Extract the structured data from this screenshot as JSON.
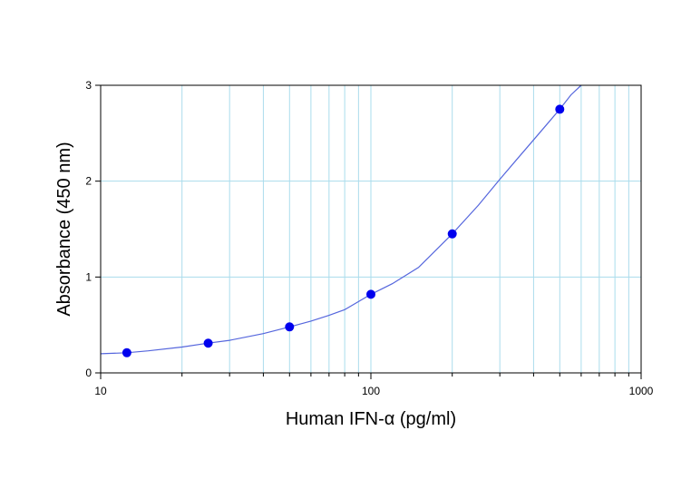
{
  "chart_data": {
    "type": "scatter",
    "title": "",
    "xlabel": "Human IFN-α (pg/ml)",
    "ylabel": "Absorbance (450 nm)",
    "xscale": "log",
    "xlim": [
      10,
      1000
    ],
    "ylim": [
      0,
      3
    ],
    "x_ticks": [
      {
        "value": 10,
        "label": "10"
      },
      {
        "value": 100,
        "label": "100"
      },
      {
        "value": 1000,
        "label": "1000"
      }
    ],
    "y_ticks": [
      {
        "value": 0,
        "label": "0"
      },
      {
        "value": 1,
        "label": "1"
      },
      {
        "value": 2,
        "label": "2"
      },
      {
        "value": 3,
        "label": "3"
      }
    ],
    "grid": true,
    "series": [
      {
        "x": [
          12.5,
          25,
          50,
          100,
          200,
          500
        ],
        "y": [
          0.21,
          0.31,
          0.48,
          0.82,
          1.45,
          2.75
        ],
        "color": "#0000ee",
        "marker": "circle"
      }
    ],
    "fit_curve": {
      "x": [
        10,
        12.5,
        15,
        20,
        25,
        30,
        40,
        50,
        60,
        70,
        80,
        100,
        120,
        150,
        200,
        250,
        300,
        350,
        400,
        450,
        500,
        550,
        600
      ],
      "y": [
        0.2,
        0.21,
        0.23,
        0.27,
        0.31,
        0.34,
        0.41,
        0.48,
        0.54,
        0.6,
        0.66,
        0.82,
        0.93,
        1.1,
        1.45,
        1.75,
        2.02,
        2.24,
        2.43,
        2.6,
        2.75,
        2.9,
        3.0
      ],
      "color": "#5566dd"
    },
    "colors": {
      "grid": "#aadcec",
      "frame": "#000000",
      "marker": "#0000ee",
      "curve": "#5566dd"
    }
  }
}
